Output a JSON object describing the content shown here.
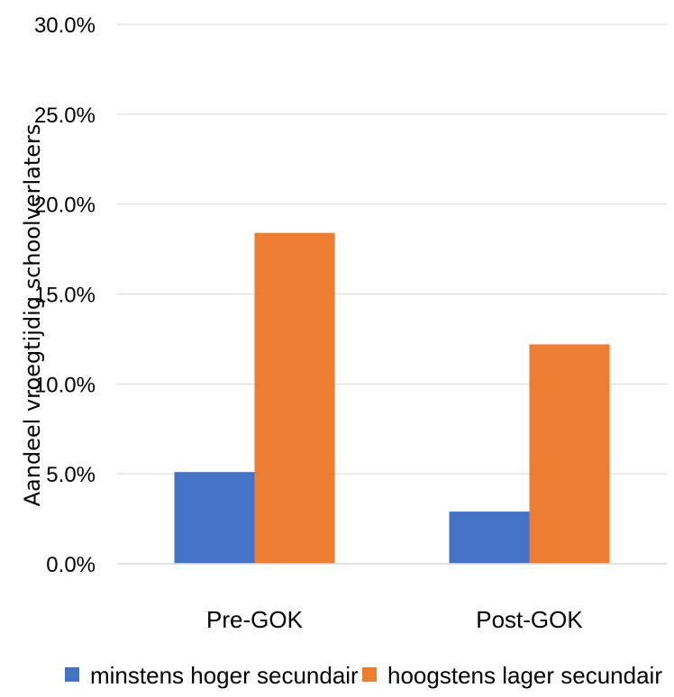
{
  "chart_data": {
    "type": "bar",
    "ylabel": "Aandeel vroegtijdig schoolverlaters",
    "xlabel": "",
    "categories": [
      "Pre-GOK",
      "Post-GOK"
    ],
    "series": [
      {
        "name": "minstens hoger secundair",
        "color": "#4472C4",
        "values": [
          5.1,
          2.9
        ]
      },
      {
        "name": "hoogstens lager secundair",
        "color": "#ED7D31",
        "values": [
          18.4,
          12.2
        ]
      }
    ],
    "ylim": [
      0,
      30
    ],
    "yticks": [
      0,
      5,
      10,
      15,
      20,
      25,
      30
    ],
    "ytick_labels": [
      "0.0%",
      "5.0%",
      "10.0%",
      "15.0%",
      "20.0%",
      "25.0%",
      "30.0%"
    ],
    "grid": true,
    "legend": "bottom"
  }
}
